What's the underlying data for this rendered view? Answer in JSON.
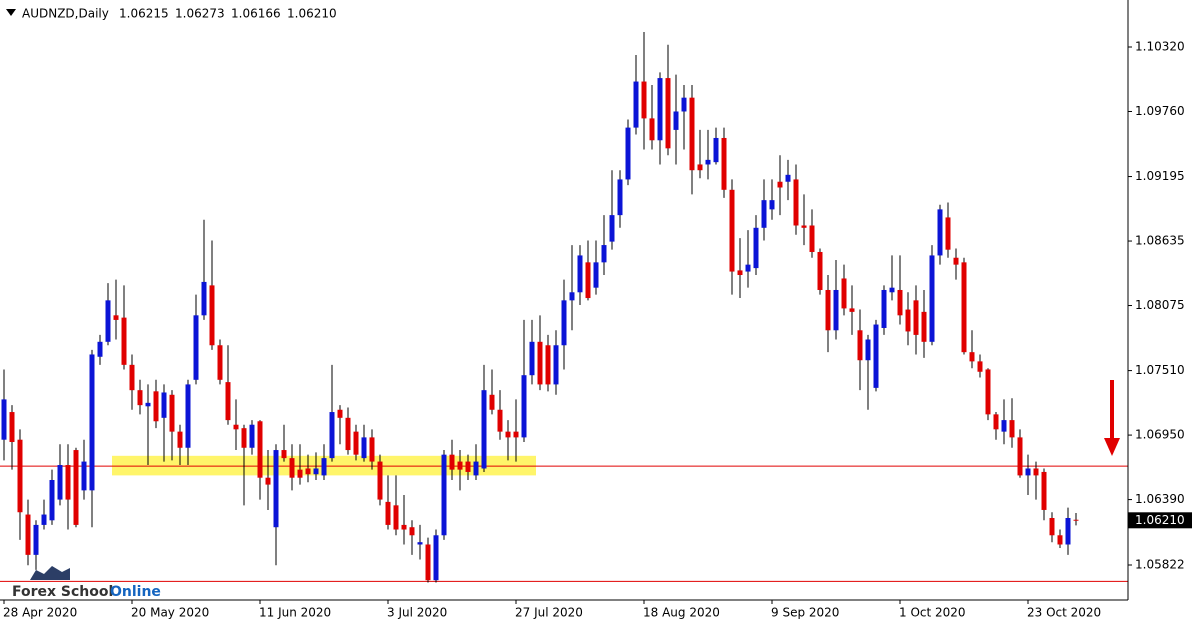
{
  "chart_data": {
    "type": "candlestick",
    "title": "AUDNZD,Daily",
    "title_values": [
      1.06215,
      1.06273,
      1.06166,
      {
        "value": 1.0621,
        "label": "1.06210"
      }
    ],
    "watermark": [
      "Forex School",
      "Online"
    ],
    "categories": [
      "28 Apr 2020",
      null,
      null,
      null,
      null,
      null,
      null,
      null,
      null,
      null,
      null,
      null,
      null,
      null,
      null,
      null,
      "20 May 2020",
      null,
      null,
      null,
      null,
      null,
      null,
      null,
      null,
      null,
      null,
      null,
      null,
      null,
      null,
      null,
      "11 Jun 2020",
      null,
      null,
      null,
      null,
      null,
      null,
      null,
      null,
      null,
      null,
      null,
      null,
      null,
      null,
      null,
      "3 Jul 2020",
      null,
      null,
      null,
      null,
      null,
      null,
      null,
      null,
      null,
      null,
      null,
      null,
      null,
      null,
      null,
      "27 Jul 2020",
      null,
      null,
      null,
      null,
      null,
      null,
      null,
      null,
      null,
      null,
      null,
      null,
      null,
      null,
      null,
      "18 Aug 2020",
      null,
      null,
      null,
      null,
      null,
      null,
      null,
      null,
      null,
      null,
      null,
      null,
      null,
      null,
      null,
      "9 Sep 2020",
      null,
      null,
      null,
      null,
      null,
      null,
      null,
      null,
      null,
      null,
      null,
      null,
      null,
      null,
      null,
      "1 Oct 2020",
      null,
      null,
      null,
      null,
      null,
      null,
      null,
      null,
      null,
      null,
      null,
      null,
      null,
      null,
      null,
      "23 Oct 2020",
      null,
      null,
      null,
      null,
      null,
      null
    ],
    "open": [
      1.0691,
      1.0715,
      1.0691,
      1.0626,
      1.0591,
      1.0617,
      1.0621,
      1.0639,
      1.0669,
      1.0682,
      1.0647,
      1.0647,
      1.0763,
      1.0776,
      1.0799,
      1.0797,
      1.0756,
      1.0734,
      1.072,
      1.0733,
      1.071,
      1.073,
      1.0698,
      1.0684,
      1.0743,
      1.0799,
      1.0825,
      1.0773,
      1.0741,
      1.0704,
      1.0701,
      1.0684,
      1.0707,
      1.0658,
      1.0615,
      1.0682,
      1.0675,
      1.0665,
      1.0666,
      1.0661,
      1.066,
      1.0675,
      1.0717,
      1.071,
      1.0698,
      1.0675,
      1.0693,
      1.0672,
      1.0637,
      1.0634,
      1.0617,
      1.0615,
      1.06,
      1.06,
      1.0569,
      1.0608,
      1.0678,
      1.0672,
      1.0672,
      1.066,
      1.0666,
      1.073,
      1.0717,
      1.0698,
      1.0698,
      1.0693,
      1.0747,
      1.0776,
      1.0773,
      1.0739,
      1.0773,
      1.0812,
      1.0819,
      1.0845,
      1.0823,
      1.0845,
      1.0863,
      1.0886,
      1.0917,
      1.0962,
      1.1002,
      1.097,
      1.0951,
      1.1005,
      1.096,
      1.0976,
      1.0988,
      1.093,
      1.093,
      1.0932,
      1.0953,
      1.0908,
      1.0838,
      1.0837,
      1.084,
      1.0875,
      1.0891,
      1.0915,
      1.0915,
      1.0917,
      1.0877,
      1.0877,
      1.0854,
      1.0821,
      1.0786,
      1.0831,
      1.0805,
      1.0786,
      1.076,
      1.0736,
      1.0788,
      1.0819,
      1.0821,
      1.0804,
      1.0812,
      1.0802,
      1.0776,
      1.0851,
      1.0884,
      1.0849,
      1.0845,
      1.0767,
      1.0759,
      1.0752,
      1.0713,
      1.0698,
      1.0708,
      1.0693,
      1.066,
      1.0666,
      1.0663,
      1.0623,
      1.0608,
      1.06,
      1.06215
    ],
    "high": [
      1.0752,
      1.0721,
      1.07,
      1.0639,
      1.0621,
      1.0639,
      1.0665,
      1.0687,
      1.0687,
      1.0684,
      1.0691,
      1.0769,
      1.0782,
      1.0827,
      1.083,
      1.0825,
      1.0765,
      1.0743,
      1.0739,
      1.0743,
      1.0739,
      1.0734,
      1.0704,
      1.0743,
      1.0817,
      1.0882,
      1.0864,
      1.0778,
      1.0773,
      1.0726,
      1.0704,
      1.0708,
      1.0708,
      1.0682,
      1.0687,
      1.0704,
      1.0687,
      1.0687,
      1.0678,
      1.068,
      1.0687,
      1.0756,
      1.0721,
      1.0719,
      1.0704,
      1.0704,
      1.07,
      1.0678,
      1.066,
      1.066,
      1.0643,
      1.0621,
      1.0617,
      1.0606,
      1.0613,
      1.0682,
      1.0691,
      1.0682,
      1.0678,
      1.0687,
      1.0756,
      1.0752,
      1.0734,
      1.0708,
      1.0726,
      1.0795,
      1.0795,
      1.0799,
      1.0782,
      1.0786,
      1.083,
      1.086,
      1.086,
      1.0864,
      1.0864,
      1.0886,
      1.0925,
      1.0925,
      1.0969,
      1.1025,
      1.1045,
      1.0999,
      1.101,
      1.1034,
      1.1008,
      1.0999,
      1.0999,
      1.096,
      1.096,
      1.0962,
      1.0962,
      1.0917,
      1.0866,
      1.0873,
      1.0886,
      1.0917,
      1.0917,
      1.0938,
      1.0934,
      1.093,
      1.0904,
      1.0891,
      1.0857,
      1.0834,
      1.0847,
      1.0843,
      1.0825,
      1.0804,
      1.0782,
      1.0795,
      1.0825,
      1.0851,
      1.0851,
      1.0819,
      1.0825,
      1.0821,
      1.086,
      1.0895,
      1.0897,
      1.0857,
      1.0849,
      1.0786,
      1.0765,
      1.0753,
      1.0715,
      1.0726,
      1.0727,
      1.07,
      1.0678,
      1.0672,
      1.0666,
      1.0628,
      1.0613,
      1.0632,
      1.06273
    ],
    "low": [
      1.0673,
      1.0665,
      1.0604,
      1.0582,
      1.0578,
      1.0613,
      1.0617,
      1.0634,
      1.0613,
      1.0615,
      1.0639,
      1.0615,
      1.0756,
      1.0773,
      1.0778,
      1.0752,
      1.0717,
      1.0713,
      1.0669,
      1.0701,
      1.0672,
      1.0673,
      1.0669,
      1.0669,
      1.0739,
      1.0795,
      1.0769,
      1.0739,
      1.0704,
      1.0682,
      1.0634,
      1.0678,
      1.0639,
      1.063,
      1.0582,
      1.0672,
      1.0647,
      1.0652,
      1.0654,
      1.0656,
      1.0656,
      1.0672,
      1.0687,
      1.0678,
      1.0673,
      1.0672,
      1.0665,
      1.0634,
      1.0613,
      1.0608,
      1.06,
      1.0591,
      1.0587,
      1.0567,
      1.0567,
      1.0604,
      1.0656,
      1.0647,
      1.0656,
      1.0656,
      1.0663,
      1.0713,
      1.0691,
      1.0673,
      1.0672,
      1.0689,
      1.0739,
      1.0734,
      1.0733,
      1.073,
      1.0752,
      1.0786,
      1.0808,
      1.0812,
      1.0817,
      1.0834,
      1.0856,
      1.0875,
      1.0912,
      1.0956,
      1.0943,
      1.0943,
      1.093,
      1.0938,
      1.093,
      1.0943,
      1.0904,
      1.0918,
      1.0917,
      1.093,
      1.0901,
      1.0817,
      1.0814,
      1.0823,
      1.0834,
      1.0864,
      1.0882,
      1.0886,
      1.0899,
      1.0869,
      1.086,
      1.0849,
      1.0817,
      1.0767,
      1.0778,
      1.0799,
      1.0782,
      1.0734,
      1.0717,
      1.0733,
      1.0782,
      1.0812,
      1.0791,
      1.0773,
      1.0765,
      1.0762,
      1.0773,
      1.0843,
      1.0849,
      1.083,
      1.0765,
      1.0753,
      1.0745,
      1.0708,
      1.0691,
      1.0687,
      1.0684,
      1.0658,
      1.0643,
      1.0639,
      1.0621,
      1.0602,
      1.0597,
      1.0591,
      1.06166
    ],
    "close": [
      1.0726,
      1.0689,
      1.0628,
      1.0591,
      1.0617,
      1.0626,
      1.0656,
      1.0669,
      1.0639,
      1.0617,
      1.0672,
      1.0765,
      1.0776,
      1.0812,
      1.0795,
      1.0756,
      1.0734,
      1.0721,
      1.0723,
      1.0707,
      1.0732,
      1.0698,
      1.0684,
      1.0739,
      1.0799,
      1.0828,
      1.0773,
      1.0743,
      1.0708,
      1.07,
      1.0684,
      1.0704,
      1.0658,
      1.0652,
      1.0682,
      1.0675,
      1.0658,
      1.0658,
      1.0661,
      1.0666,
      1.0675,
      1.0715,
      1.071,
      1.0682,
      1.0678,
      1.0693,
      1.0672,
      1.0639,
      1.0617,
      1.0613,
      1.0613,
      1.0608,
      1.0602,
      1.0569,
      1.0608,
      1.0678,
      1.0665,
      1.0665,
      1.0663,
      1.0672,
      1.0734,
      1.0717,
      1.0698,
      1.0693,
      1.0693,
      1.0747,
      1.0776,
      1.0739,
      1.0739,
      1.0773,
      1.0812,
      1.0819,
      1.0851,
      1.0814,
      1.0845,
      1.086,
      1.0886,
      1.0917,
      1.0962,
      1.1002,
      1.097,
      1.0951,
      1.1005,
      1.0944,
      1.0976,
      1.0988,
      1.0925,
      1.0925,
      1.0934,
      1.0953,
      1.0908,
      1.0837,
      1.0834,
      1.0843,
      1.0875,
      1.0899,
      1.0899,
      1.091,
      1.0921,
      1.0877,
      1.0875,
      1.0854,
      1.0821,
      1.0786,
      1.0821,
      1.0805,
      1.0802,
      1.076,
      1.0778,
      1.0791,
      1.0821,
      1.0823,
      1.0799,
      1.0785,
      1.0782,
      1.0776,
      1.0851,
      1.0891,
      1.0856,
      1.0843,
      1.0767,
      1.0759,
      1.075,
      1.0713,
      1.07,
      1.0708,
      1.0693,
      1.066,
      1.0666,
      1.066,
      1.063,
      1.0608,
      1.06,
      1.0623,
      1.0621
    ],
    "up_color": "#0b14d6",
    "down_color": "#e00000",
    "wick_color": "#000000",
    "ylim": [
      1.05518,
      1.10702
    ],
    "yticks": [
      {
        "value": 1.1032,
        "label": "1.10320"
      },
      {
        "value": 1.0976,
        "label": "1.09760"
      },
      1.09195,
      1.08635,
      1.08075,
      {
        "value": 1.0751,
        "label": "1.07510"
      },
      {
        "value": 1.0695,
        "label": "1.06950"
      },
      {
        "value": 1.0639,
        "label": "1.06390"
      },
      1.05822
    ],
    "last_price": {
      "value": 1.0621,
      "label": "1.06210"
    },
    "levels": [
      1.0668,
      1.0568
    ],
    "level_color": "#e00000",
    "zone": {
      "y": [
        1.066,
        1.0677
      ],
      "x": [
        14,
        66
      ]
    },
    "zone_color": "#fff56a"
  }
}
